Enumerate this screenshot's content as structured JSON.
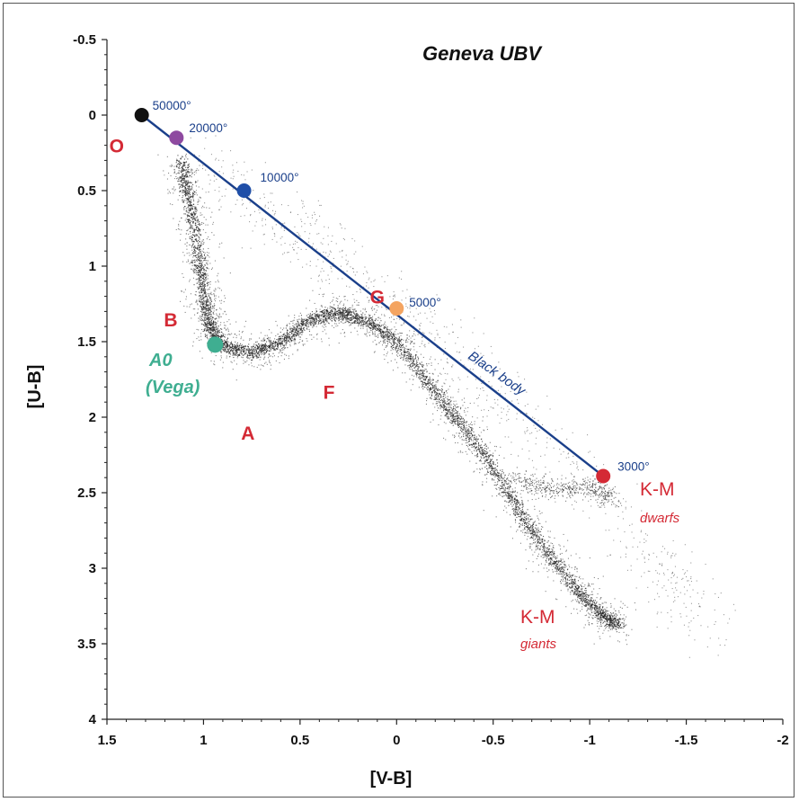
{
  "chart_data": {
    "type": "scatter",
    "title": "Geneva UBV",
    "xlabel": "[V-B]",
    "ylabel": "[U-B]",
    "xlim": [
      1.5,
      -2
    ],
    "ylim": [
      -0.5,
      4
    ],
    "x_inverted": true,
    "y_inverted": true,
    "x_ticks": [
      "1.5",
      "1",
      "0.5",
      "0",
      "-0.5",
      "-1",
      "-1.5",
      "-2"
    ],
    "y_ticks": [
      "-0.5",
      "0",
      "0.5",
      "1",
      "1.5",
      "2",
      "2.5",
      "3",
      "3.5",
      "4"
    ],
    "black_body": {
      "label": "Black body",
      "color": "#1a3f8a",
      "points": [
        {
          "temperature": "50000°",
          "x": 1.32,
          "y": 0.0,
          "color": "#111111"
        },
        {
          "temperature": "20000°",
          "x": 1.14,
          "y": 0.15,
          "color": "#8e4aa0"
        },
        {
          "temperature": "10000°",
          "x": 0.79,
          "y": 0.5,
          "color": "#1f4fa8"
        },
        {
          "temperature": "5000°",
          "x": 0.0,
          "y": 1.28,
          "color": "#f4a460"
        },
        {
          "temperature": "3000°",
          "x": -1.07,
          "y": 2.39,
          "color": "#d42a35"
        }
      ]
    },
    "vega": {
      "label_line1": "A0",
      "label_line2": "(Vega)",
      "x": 0.94,
      "y": 1.52,
      "color": "#3fae91"
    },
    "spectral_classes": [
      {
        "label": "O",
        "x": 1.45,
        "y": 0.2
      },
      {
        "label": "B",
        "x": 1.17,
        "y": 1.35
      },
      {
        "label": "A",
        "x": 0.77,
        "y": 2.1
      },
      {
        "label": "F",
        "x": 0.35,
        "y": 1.83
      },
      {
        "label": "G",
        "x": 0.1,
        "y": 1.2
      }
    ],
    "km_dwarfs": {
      "label": "K-M",
      "sublabel": "dwarfs"
    },
    "km_giants": {
      "label": "K-M",
      "sublabel": "giants"
    },
    "star_locus": {
      "description_visible": false,
      "color": "#222222",
      "path": [
        [
          1.12,
          0.3
        ],
        [
          1.07,
          0.6
        ],
        [
          1.03,
          0.9
        ],
        [
          1.0,
          1.2
        ],
        [
          0.97,
          1.4
        ],
        [
          0.9,
          1.53
        ],
        [
          0.75,
          1.57
        ],
        [
          0.6,
          1.5
        ],
        [
          0.45,
          1.35
        ],
        [
          0.3,
          1.3
        ],
        [
          0.15,
          1.37
        ],
        [
          0.0,
          1.5
        ],
        [
          -0.15,
          1.75
        ],
        [
          -0.3,
          2.0
        ],
        [
          -0.45,
          2.25
        ],
        [
          -0.6,
          2.55
        ],
        [
          -0.75,
          2.85
        ],
        [
          -0.9,
          3.1
        ],
        [
          -1.05,
          3.3
        ],
        [
          -1.15,
          3.38
        ]
      ],
      "dwarf_branch": [
        [
          -0.6,
          2.4
        ],
        [
          -0.8,
          2.48
        ],
        [
          -1.0,
          2.45
        ],
        [
          -1.12,
          2.55
        ]
      ]
    }
  }
}
